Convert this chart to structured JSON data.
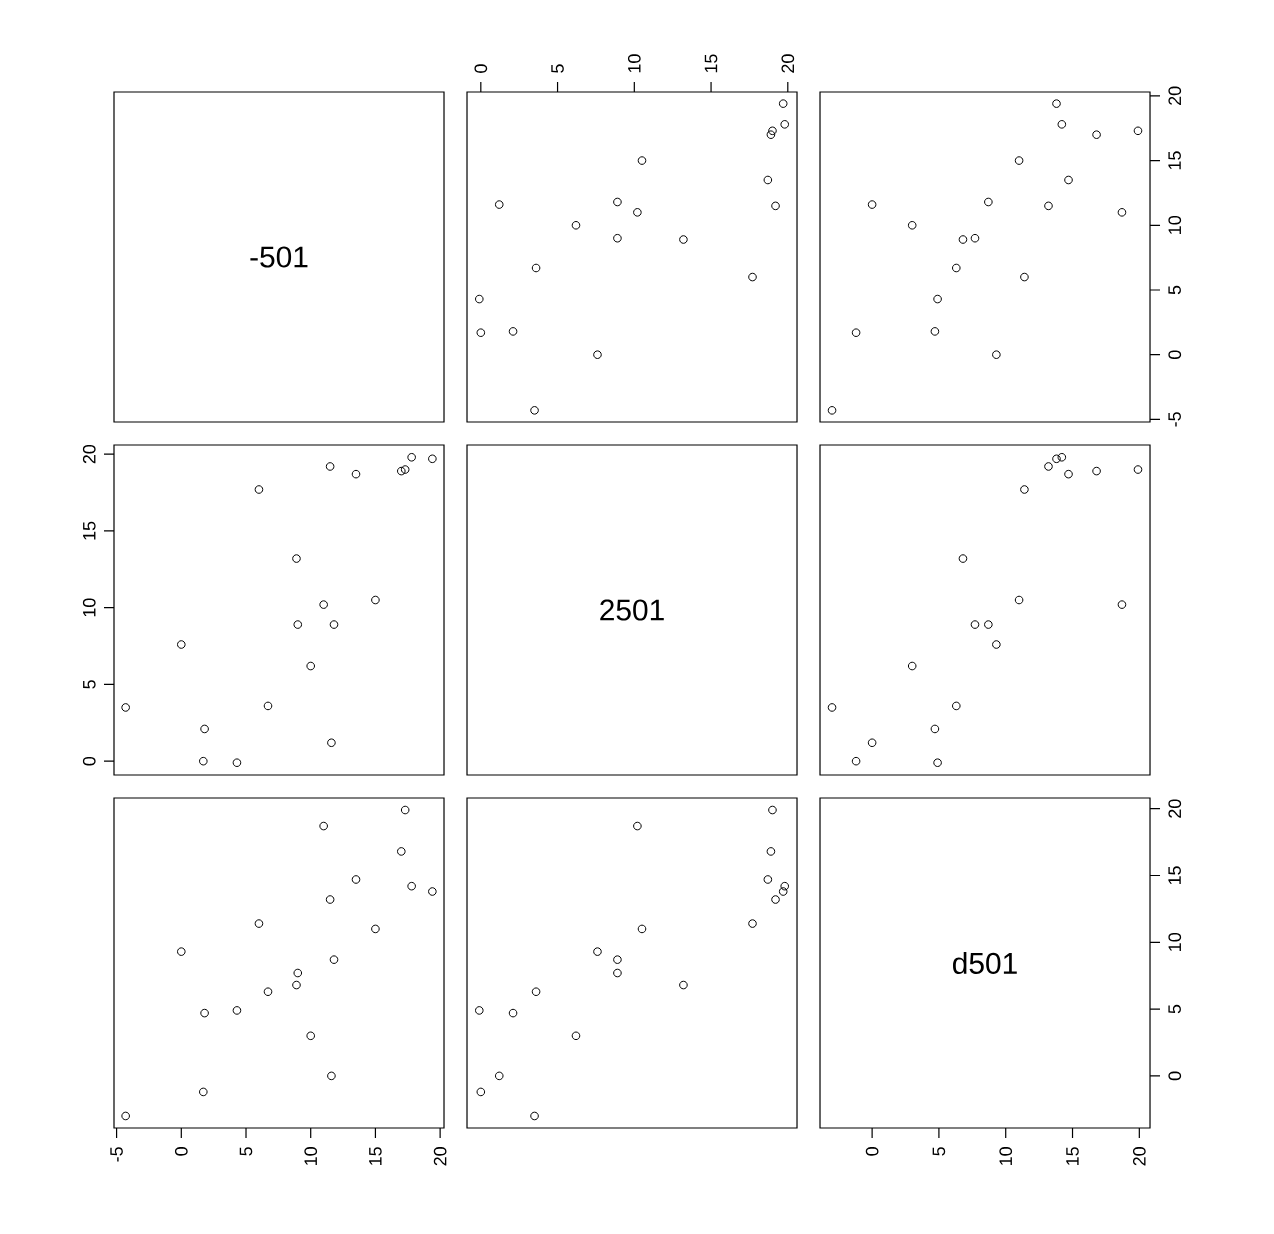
{
  "chart_data": [
    {
      "type": "scatter",
      "title": "-501",
      "xlim": [
        -5.2,
        20.3
      ],
      "ylim": [
        -5.2,
        20.3
      ],
      "tick_labels": false
    },
    {
      "type": "scatter",
      "color": "#000000",
      "marker": "circle",
      "x": [
        3.5,
        0.0,
        1.2,
        6.2,
        13.2,
        8.9,
        3.6,
        -0.1,
        2.1,
        7.6,
        8.9,
        17.7,
        10.5,
        19.2,
        18.7,
        19.7,
        19.8,
        18.9,
        19.0,
        10.2
      ],
      "values": [
        -4.3,
        1.7,
        11.6,
        10.0,
        8.9,
        9.0,
        6.7,
        4.3,
        1.8,
        0.0,
        11.8,
        6.0,
        15.0,
        11.5,
        13.5,
        19.4,
        17.8,
        17.0,
        17.3,
        11.0
      ],
      "xlim": [
        -0.9,
        20.6
      ],
      "ylim": [
        -5.2,
        20.3
      ],
      "xticks": [
        0,
        5,
        10,
        15,
        20
      ],
      "tick_labels": "x"
    },
    {
      "type": "scatter",
      "color": "#000000",
      "marker": "circle",
      "x": [
        -3.0,
        -1.2,
        0.0,
        3.0,
        6.8,
        7.7,
        6.3,
        4.9,
        4.7,
        9.3,
        8.7,
        11.4,
        11.0,
        13.2,
        14.7,
        13.8,
        14.2,
        16.8,
        19.9,
        18.7
      ],
      "values": [
        -4.3,
        1.7,
        11.6,
        10.0,
        8.9,
        9.0,
        6.7,
        4.3,
        1.8,
        0.0,
        11.8,
        6.0,
        15.0,
        11.5,
        13.5,
        19.4,
        17.8,
        17.0,
        17.3,
        11.0
      ],
      "xlim": [
        -3.9,
        20.8
      ],
      "ylim": [
        -5.2,
        20.3
      ],
      "yticks": [
        -5,
        0,
        5,
        10,
        15,
        20
      ],
      "tick_labels": "y"
    },
    {
      "type": "scatter",
      "color": "#000000",
      "marker": "circle",
      "x": [
        -4.3,
        1.7,
        11.6,
        10.0,
        8.9,
        9.0,
        6.7,
        4.3,
        1.8,
        0.0,
        11.8,
        6.0,
        15.0,
        11.5,
        13.5,
        19.4,
        17.8,
        17.0,
        17.3,
        11.0
      ],
      "values": [
        3.5,
        0.0,
        1.2,
        6.2,
        13.2,
        8.9,
        3.6,
        -0.1,
        2.1,
        7.6,
        8.9,
        17.7,
        10.5,
        19.2,
        18.7,
        19.7,
        19.8,
        18.9,
        19.0,
        10.2
      ],
      "xlim": [
        -5.2,
        20.3
      ],
      "ylim": [
        -0.9,
        20.6
      ],
      "yticks": [
        0,
        5,
        10,
        15,
        20
      ],
      "tick_labels": "y"
    },
    {
      "type": "scatter",
      "title": "2501",
      "xlim": [
        -0.9,
        20.6
      ],
      "ylim": [
        -0.9,
        20.6
      ],
      "tick_labels": false
    },
    {
      "type": "scatter",
      "color": "#000000",
      "marker": "circle",
      "x": [
        -3.0,
        -1.2,
        0.0,
        3.0,
        6.8,
        7.7,
        6.3,
        4.9,
        4.7,
        9.3,
        8.7,
        11.4,
        11.0,
        13.2,
        14.7,
        13.8,
        14.2,
        16.8,
        19.9,
        18.7
      ],
      "values": [
        3.5,
        0.0,
        1.2,
        6.2,
        13.2,
        8.9,
        3.6,
        -0.1,
        2.1,
        7.6,
        8.9,
        17.7,
        10.5,
        19.2,
        18.7,
        19.7,
        19.8,
        18.9,
        19.0,
        10.2
      ],
      "xlim": [
        -3.9,
        20.8
      ],
      "ylim": [
        -0.9,
        20.6
      ],
      "tick_labels": false
    },
    {
      "type": "scatter",
      "color": "#000000",
      "marker": "circle",
      "x": [
        -4.3,
        1.7,
        11.6,
        10.0,
        8.9,
        9.0,
        6.7,
        4.3,
        1.8,
        0.0,
        11.8,
        6.0,
        15.0,
        11.5,
        13.5,
        19.4,
        17.8,
        17.0,
        17.3,
        11.0
      ],
      "values": [
        -3.0,
        -1.2,
        0.0,
        3.0,
        6.8,
        7.7,
        6.3,
        4.9,
        4.7,
        9.3,
        8.7,
        11.4,
        11.0,
        13.2,
        14.7,
        13.8,
        14.2,
        16.8,
        19.9,
        18.7
      ],
      "xlim": [
        -5.2,
        20.3
      ],
      "ylim": [
        -3.9,
        20.8
      ],
      "xticks": [
        -5,
        0,
        5,
        10,
        15,
        20
      ],
      "tick_labels": "x"
    },
    {
      "type": "scatter",
      "color": "#000000",
      "marker": "circle",
      "x": [
        3.5,
        0.0,
        1.2,
        6.2,
        13.2,
        8.9,
        3.6,
        -0.1,
        2.1,
        7.6,
        8.9,
        17.7,
        10.5,
        19.2,
        18.7,
        19.7,
        19.8,
        18.9,
        19.0,
        10.2
      ],
      "values": [
        -3.0,
        -1.2,
        0.0,
        3.0,
        6.8,
        7.7,
        6.3,
        4.9,
        4.7,
        9.3,
        8.7,
        11.4,
        11.0,
        13.2,
        14.7,
        13.8,
        14.2,
        16.8,
        19.9,
        18.7
      ],
      "xlim": [
        -0.9,
        20.6
      ],
      "ylim": [
        -3.9,
        20.8
      ],
      "tick_labels": false
    },
    {
      "type": "scatter",
      "title": "d501",
      "xlim": [
        -3.9,
        20.8
      ],
      "ylim": [
        -3.9,
        20.8
      ],
      "xticks": [
        0,
        5,
        10,
        15,
        20
      ],
      "yticks": [
        0,
        5,
        10,
        15,
        20
      ]
    }
  ]
}
